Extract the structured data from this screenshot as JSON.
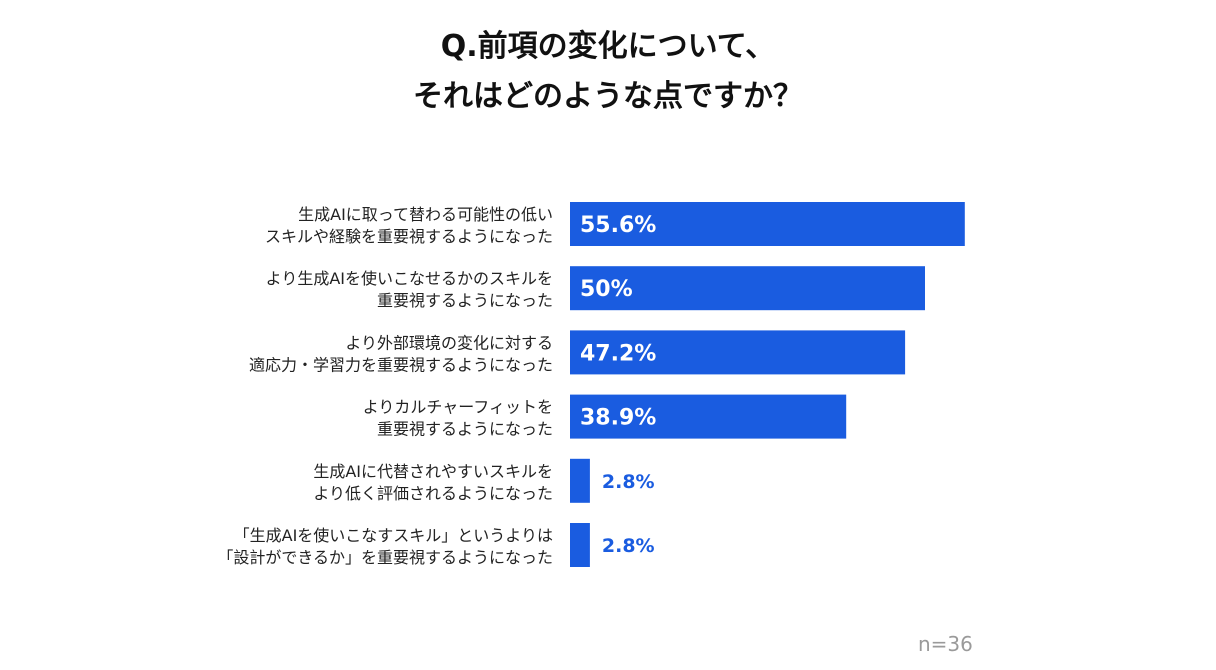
{
  "title": {
    "line1": "Q.前項の変化について、",
    "line2": "それはどのような点ですか？"
  },
  "note": "n=36",
  "colors": {
    "bar": "#1a5ce0",
    "value_outside": "#1a5ce0"
  },
  "chart_data": {
    "type": "bar",
    "orientation": "horizontal",
    "title": "Q.前項の変化について、それはどのような点ですか？",
    "unit": "%",
    "xlim": [
      0,
      100
    ],
    "grid": false,
    "categories": [
      [
        "生成AIに取って替わる可能性の低い",
        "スキルや経験を重要視するようになった"
      ],
      [
        "より生成AIを使いこなせるかのスキルを",
        "重要視するようになった"
      ],
      [
        "より外部環境の変化に対する",
        "適応力・学習力を重要視するようになった"
      ],
      [
        "よりカルチャーフィットを",
        "重要視するようになった"
      ],
      [
        "生成AIに代替されやすいスキルを",
        "より低く評価されるようになった"
      ],
      [
        "「生成AIを使いこなすスキル」というよりは",
        "「設計ができるか」を重要視するようになった"
      ]
    ],
    "values": [
      55.6,
      50,
      47.2,
      38.9,
      2.8,
      2.8
    ],
    "value_labels": [
      "55.6%",
      "50%",
      "47.2%",
      "38.9%",
      "2.8%",
      "2.8%"
    ]
  }
}
